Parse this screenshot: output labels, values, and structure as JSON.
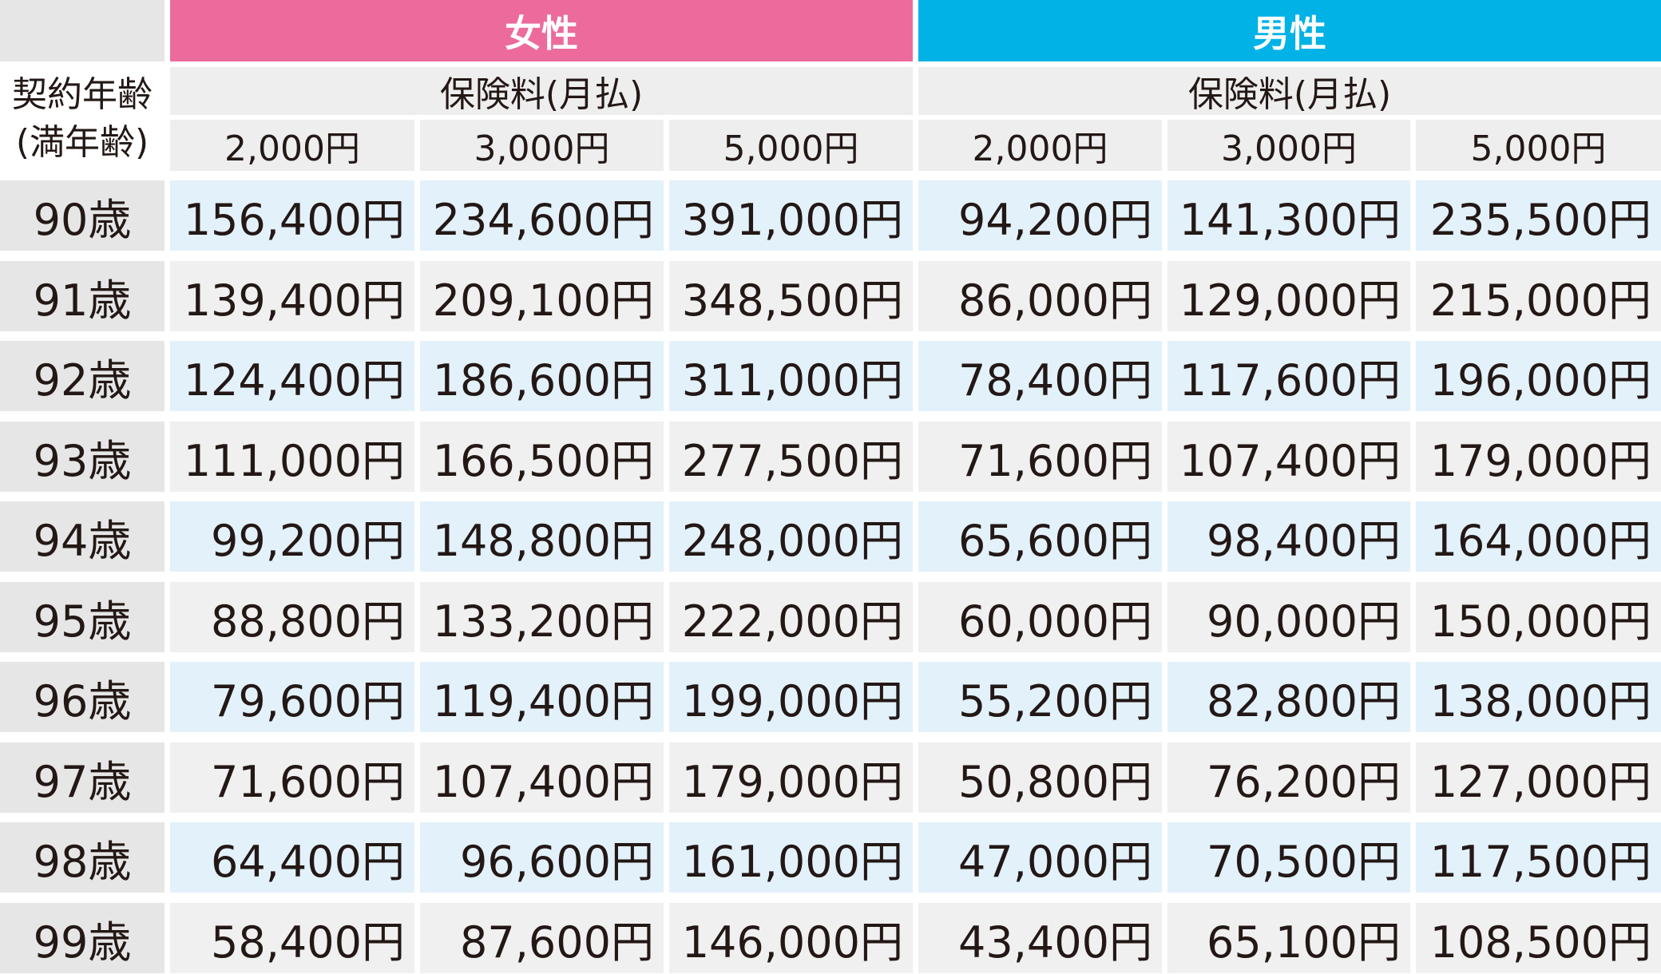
{
  "table": {
    "corner_label_line1": "契約年齢",
    "corner_label_line2": "(満年齢)",
    "groups": [
      {
        "label": "女性",
        "color": "#ec6b9c"
      },
      {
        "label": "男性",
        "color": "#00b2e6"
      }
    ],
    "sub_header": "保険料(月払)",
    "amount_headers": [
      "2,000円",
      "3,000円",
      "5,000円"
    ],
    "rows": [
      {
        "age": "90歳",
        "values": [
          "156,400円",
          "234,600円",
          "391,000円",
          "94,200円",
          "141,300円",
          "235,500円"
        ]
      },
      {
        "age": "91歳",
        "values": [
          "139,400円",
          "209,100円",
          "348,500円",
          "86,000円",
          "129,000円",
          "215,000円"
        ]
      },
      {
        "age": "92歳",
        "values": [
          "124,400円",
          "186,600円",
          "311,000円",
          "78,400円",
          "117,600円",
          "196,000円"
        ]
      },
      {
        "age": "93歳",
        "values": [
          "111,000円",
          "166,500円",
          "277,500円",
          "71,600円",
          "107,400円",
          "179,000円"
        ]
      },
      {
        "age": "94歳",
        "values": [
          "99,200円",
          "148,800円",
          "248,000円",
          "65,600円",
          "98,400円",
          "164,000円"
        ]
      },
      {
        "age": "95歳",
        "values": [
          "88,800円",
          "133,200円",
          "222,000円",
          "60,000円",
          "90,000円",
          "150,000円"
        ]
      },
      {
        "age": "96歳",
        "values": [
          "79,600円",
          "119,400円",
          "199,000円",
          "55,200円",
          "82,800円",
          "138,000円"
        ]
      },
      {
        "age": "97歳",
        "values": [
          "71,600円",
          "107,400円",
          "179,000円",
          "50,800円",
          "76,200円",
          "127,000円"
        ]
      },
      {
        "age": "98歳",
        "values": [
          "64,400円",
          "96,600円",
          "161,000円",
          "47,000円",
          "70,500円",
          "117,500円"
        ]
      },
      {
        "age": "99歳",
        "values": [
          "58,400円",
          "87,600円",
          "146,000円",
          "43,400円",
          "65,100円",
          "108,500円"
        ]
      }
    ]
  }
}
